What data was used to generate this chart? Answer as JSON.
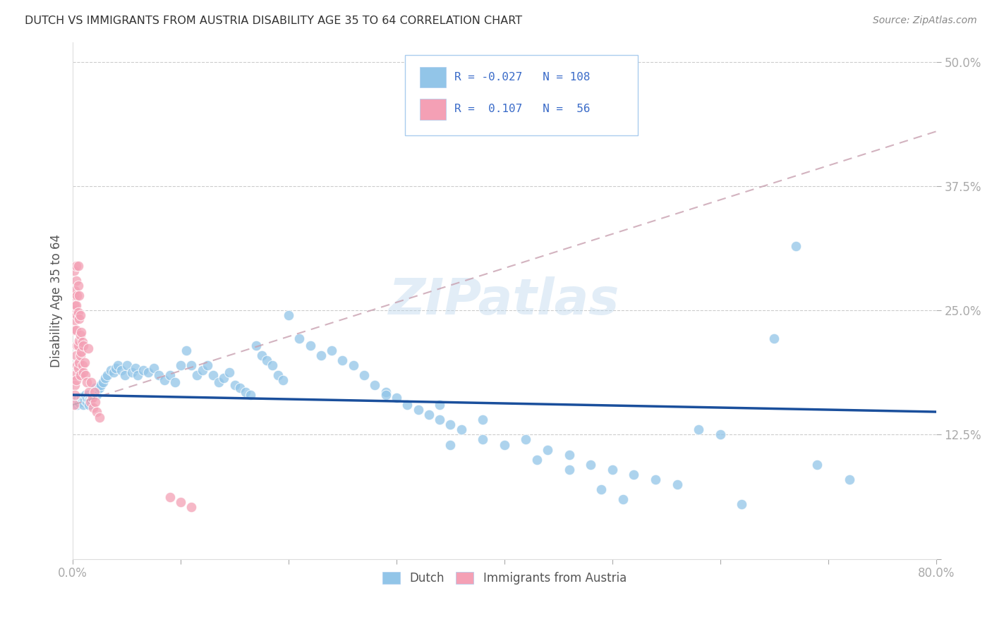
{
  "title": "DUTCH VS IMMIGRANTS FROM AUSTRIA DISABILITY AGE 35 TO 64 CORRELATION CHART",
  "source": "Source: ZipAtlas.com",
  "ylabel": "Disability Age 35 to 64",
  "xlim": [
    0.0,
    0.8
  ],
  "ylim": [
    0.0,
    0.52
  ],
  "yticks": [
    0.0,
    0.125,
    0.25,
    0.375,
    0.5
  ],
  "ytick_labels": [
    "",
    "12.5%",
    "25.0%",
    "37.5%",
    "50.0%"
  ],
  "xticks": [
    0.0,
    0.1,
    0.2,
    0.3,
    0.4,
    0.5,
    0.6,
    0.7,
    0.8
  ],
  "xtick_labels": [
    "0.0%",
    "",
    "",
    "",
    "",
    "",
    "",
    "",
    "80.0%"
  ],
  "legend_dutch": "Dutch",
  "legend_immigrants": "Immigrants from Austria",
  "R_dutch": -0.027,
  "N_dutch": 108,
  "R_immigrants": 0.107,
  "N_immigrants": 56,
  "dutch_color": "#92C5E8",
  "dutch_line_color": "#1A4F9C",
  "immigrant_color": "#F4A0B5",
  "immigrant_line_color": "#E87090",
  "background_color": "#FFFFFF",
  "watermark": "ZIPatlas",
  "dutch_x": [
    0.003,
    0.004,
    0.005,
    0.005,
    0.006,
    0.007,
    0.008,
    0.009,
    0.01,
    0.01,
    0.011,
    0.012,
    0.013,
    0.013,
    0.014,
    0.015,
    0.015,
    0.016,
    0.017,
    0.018,
    0.02,
    0.021,
    0.022,
    0.023,
    0.025,
    0.026,
    0.028,
    0.03,
    0.032,
    0.035,
    0.038,
    0.04,
    0.042,
    0.045,
    0.048,
    0.05,
    0.055,
    0.058,
    0.06,
    0.065,
    0.07,
    0.075,
    0.08,
    0.085,
    0.09,
    0.095,
    0.1,
    0.105,
    0.11,
    0.115,
    0.12,
    0.125,
    0.13,
    0.135,
    0.14,
    0.145,
    0.15,
    0.155,
    0.16,
    0.165,
    0.17,
    0.175,
    0.18,
    0.185,
    0.19,
    0.195,
    0.2,
    0.21,
    0.22,
    0.23,
    0.24,
    0.25,
    0.26,
    0.27,
    0.28,
    0.29,
    0.3,
    0.31,
    0.32,
    0.33,
    0.34,
    0.35,
    0.36,
    0.38,
    0.4,
    0.42,
    0.44,
    0.46,
    0.48,
    0.5,
    0.52,
    0.54,
    0.56,
    0.58,
    0.6,
    0.62,
    0.65,
    0.67,
    0.69,
    0.72,
    0.34,
    0.35,
    0.29,
    0.38,
    0.43,
    0.46,
    0.49,
    0.51
  ],
  "dutch_y": [
    0.16,
    0.155,
    0.158,
    0.162,
    0.157,
    0.16,
    0.163,
    0.158,
    0.162,
    0.155,
    0.16,
    0.165,
    0.158,
    0.162,
    0.165,
    0.16,
    0.155,
    0.162,
    0.16,
    0.165,
    0.168,
    0.172,
    0.165,
    0.17,
    0.172,
    0.175,
    0.178,
    0.182,
    0.185,
    0.19,
    0.188,
    0.192,
    0.195,
    0.19,
    0.185,
    0.195,
    0.188,
    0.192,
    0.185,
    0.19,
    0.188,
    0.192,
    0.185,
    0.18,
    0.185,
    0.178,
    0.195,
    0.21,
    0.195,
    0.185,
    0.19,
    0.195,
    0.185,
    0.178,
    0.182,
    0.188,
    0.175,
    0.172,
    0.168,
    0.165,
    0.215,
    0.205,
    0.2,
    0.195,
    0.185,
    0.18,
    0.245,
    0.222,
    0.215,
    0.205,
    0.21,
    0.2,
    0.195,
    0.185,
    0.175,
    0.168,
    0.162,
    0.155,
    0.15,
    0.145,
    0.14,
    0.135,
    0.13,
    0.12,
    0.115,
    0.12,
    0.11,
    0.105,
    0.095,
    0.09,
    0.085,
    0.08,
    0.075,
    0.13,
    0.125,
    0.055,
    0.222,
    0.315,
    0.095,
    0.08,
    0.155,
    0.115,
    0.165,
    0.14,
    0.1,
    0.09,
    0.07,
    0.06
  ],
  "immigrant_x": [
    0.001,
    0.001,
    0.001,
    0.001,
    0.001,
    0.002,
    0.002,
    0.002,
    0.002,
    0.002,
    0.002,
    0.003,
    0.003,
    0.003,
    0.003,
    0.003,
    0.003,
    0.004,
    0.004,
    0.004,
    0.004,
    0.005,
    0.005,
    0.005,
    0.005,
    0.005,
    0.006,
    0.006,
    0.006,
    0.006,
    0.007,
    0.007,
    0.007,
    0.007,
    0.008,
    0.008,
    0.009,
    0.009,
    0.01,
    0.01,
    0.011,
    0.012,
    0.013,
    0.014,
    0.015,
    0.016,
    0.017,
    0.018,
    0.019,
    0.02,
    0.021,
    0.022,
    0.025,
    0.09,
    0.1,
    0.11
  ],
  "immigrant_y": [
    0.29,
    0.265,
    0.25,
    0.23,
    0.155,
    0.27,
    0.255,
    0.24,
    0.185,
    0.175,
    0.165,
    0.295,
    0.28,
    0.255,
    0.23,
    0.205,
    0.18,
    0.265,
    0.245,
    0.215,
    0.195,
    0.295,
    0.275,
    0.248,
    0.215,
    0.192,
    0.265,
    0.242,
    0.22,
    0.198,
    0.245,
    0.225,
    0.205,
    0.185,
    0.228,
    0.208,
    0.218,
    0.195,
    0.215,
    0.188,
    0.198,
    0.185,
    0.178,
    0.212,
    0.168,
    0.158,
    0.178,
    0.162,
    0.152,
    0.168,
    0.158,
    0.148,
    0.142,
    0.062,
    0.057,
    0.052
  ],
  "dutch_trend_x": [
    0.0,
    0.8
  ],
  "dutch_trend_y": [
    0.165,
    0.148
  ],
  "imm_trend_x": [
    0.0,
    0.8
  ],
  "imm_trend_y": [
    0.155,
    0.43
  ]
}
